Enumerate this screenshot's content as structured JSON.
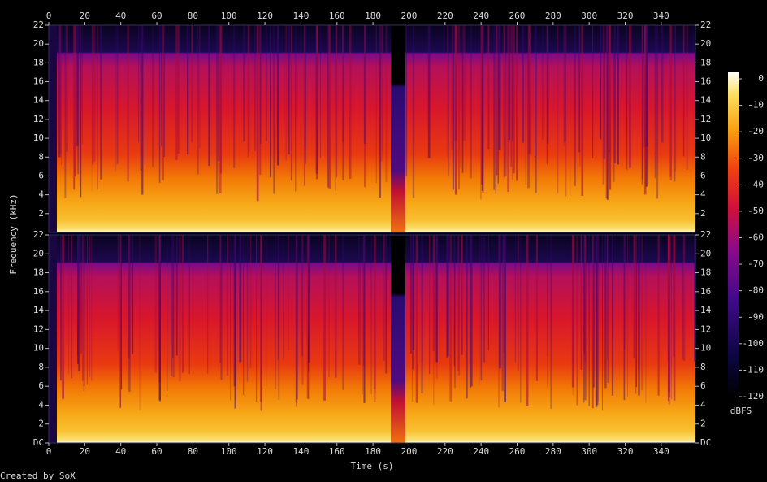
{
  "chart_data": {
    "type": "spectrogram",
    "x_label": "Time (s)",
    "y_label": "Frequency (kHz)",
    "xlim": [
      0,
      359
    ],
    "xticks": [
      0,
      20,
      40,
      60,
      80,
      100,
      120,
      140,
      160,
      180,
      200,
      220,
      240,
      260,
      280,
      300,
      320,
      340
    ],
    "ylim": [
      0,
      22
    ],
    "yticks": [
      {
        "value": 0,
        "label": "DC"
      },
      2,
      4,
      6,
      8,
      10,
      12,
      14,
      16,
      18,
      20,
      22
    ],
    "channels": 2,
    "colorbar": {
      "label": "dBFS",
      "lim": [
        -120,
        0
      ],
      "ticks": [
        0,
        -10,
        -20,
        -30,
        -40,
        -50,
        -60,
        -70,
        -80,
        -90,
        -100,
        -110,
        -120
      ]
    }
  },
  "footer": "Created by SoX"
}
